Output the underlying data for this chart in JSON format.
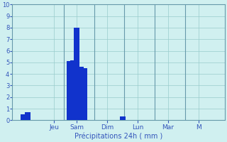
{
  "title": "",
  "xlabel": "Précipitations 24h ( mm )",
  "ylabel": "",
  "background_color": "#d0f0f0",
  "bar_color": "#1133cc",
  "grid_color": "#99cccc",
  "axis_label_color": "#3355bb",
  "tick_color": "#3355bb",
  "spine_color": "#6699aa",
  "ylim": [
    0,
    10
  ],
  "yticks": [
    0,
    1,
    2,
    3,
    4,
    5,
    6,
    7,
    8,
    9,
    10
  ],
  "bar_positions": [
    2,
    3,
    14,
    15,
    16,
    17,
    18,
    28
  ],
  "bar_values": [
    0.5,
    0.7,
    5.1,
    5.2,
    8.0,
    4.6,
    4.5,
    0.3
  ],
  "xtick_positions": [
    10,
    16,
    24,
    32,
    40,
    48
  ],
  "xtick_labels": [
    "Jeu",
    "Sam",
    "Dim",
    "Lun",
    "Mar",
    "M"
  ],
  "day_boundaries": [
    12.5,
    20.5,
    28.5,
    36.5,
    44.5
  ],
  "bar_width": 1.5,
  "xlim": [
    -1,
    55
  ],
  "figsize": [
    3.2,
    2.0
  ],
  "dpi": 100,
  "xlabel_fontsize": 7,
  "ytick_fontsize": 6,
  "xtick_fontsize": 6.5
}
